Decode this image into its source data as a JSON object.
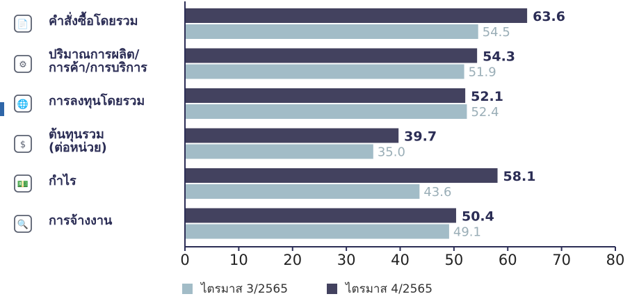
{
  "colors": {
    "q4": "#43425f",
    "q3": "#a2bcc7",
    "q4_label": "#2b2d55",
    "q3_label": "#9aaeb7",
    "axis": "#2b2d55",
    "accent": "#2f66a8"
  },
  "categories": [
    {
      "label": "คำสั่งซื้อโดยรวม",
      "icon": "document-person-icon"
    },
    {
      "label": "ปริมาณการผลิต/\nการค้า/การบริการ",
      "icon": "id-card-gear-icon"
    },
    {
      "label": "การลงทุนโดยรวม",
      "icon": "globe-handshake-icon"
    },
    {
      "label": "ต้นทุนรวม\n(ต่อหน่วย)",
      "icon": "dollar-gear-icon"
    },
    {
      "label": "กำไร",
      "icon": "money-stack-icon"
    },
    {
      "label": "การจ้างงาน",
      "icon": "magnifier-person-icon"
    }
  ],
  "legend": {
    "q3": "ไตรมาส 3/2565",
    "q4": "ไตรมาส 4/2565"
  },
  "chart_data": {
    "type": "bar",
    "orientation": "horizontal",
    "categories": [
      "คำสั่งซื้อโดยรวม",
      "ปริมาณการผลิต/การค้า/การบริการ",
      "การลงทุนโดยรวม",
      "ต้นทุนรวม (ต่อหน่วย)",
      "กำไร",
      "การจ้างงาน"
    ],
    "series": [
      {
        "name": "ไตรมาส 4/2565",
        "values": [
          63.6,
          54.3,
          52.1,
          39.7,
          58.1,
          50.4
        ],
        "color": "#43425f"
      },
      {
        "name": "ไตรมาส 3/2565",
        "values": [
          54.5,
          51.9,
          52.4,
          35.0,
          43.6,
          49.1
        ],
        "color": "#a2bcc7"
      }
    ],
    "value_labels": {
      "ไตรมาส 4/2565": [
        "63.6",
        "54.3",
        "52.1",
        "39.7",
        "58.1",
        "50.4"
      ],
      "ไตรมาส 3/2565": [
        "54.5",
        "51.9",
        "52.4",
        "35.0",
        "43.6",
        "49.1"
      ]
    },
    "xlim": [
      0,
      80
    ],
    "xticks": [
      "0",
      "10",
      "20",
      "30",
      "40",
      "50",
      "60",
      "70",
      "80"
    ],
    "title": "",
    "xlabel": "",
    "ylabel": "",
    "grid": false,
    "legend_position": "bottom"
  }
}
